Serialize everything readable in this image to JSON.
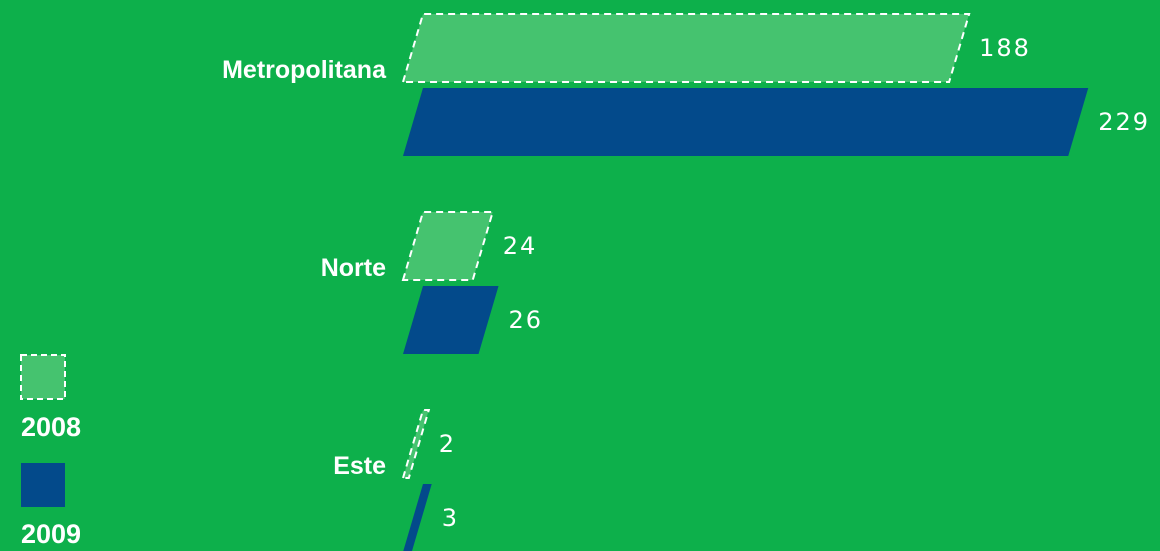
{
  "colors": {
    "background": "#0db04b",
    "series_2008": "#45c36f",
    "series_2009": "#034a8b",
    "text": "#ffffff"
  },
  "legend": {
    "items": [
      {
        "label": "2008"
      },
      {
        "label": "2009"
      }
    ]
  },
  "chart_data": {
    "type": "bar",
    "orientation": "horizontal",
    "categories": [
      "Metropolitana",
      "Norte",
      "Este"
    ],
    "series": [
      {
        "name": "2008",
        "values": [
          188,
          24,
          2
        ]
      },
      {
        "name": "2009",
        "values": [
          229,
          26,
          3
        ]
      }
    ],
    "value_labels": [
      [
        "188",
        "24",
        "2"
      ],
      [
        "229",
        "26",
        "3"
      ]
    ],
    "legend_position": "bottom-left",
    "grid": false
  }
}
